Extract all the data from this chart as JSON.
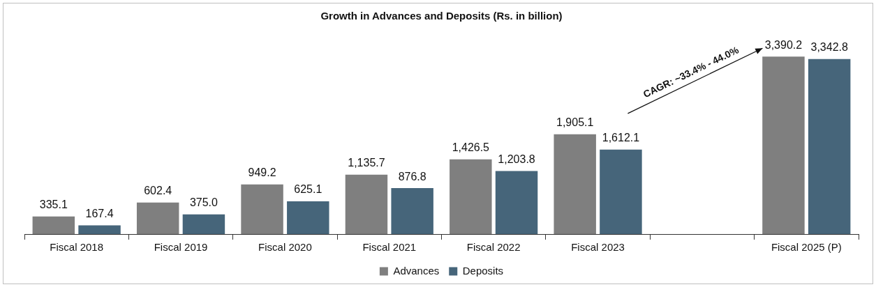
{
  "chart_data": {
    "type": "bar",
    "title": "Growth in Advances and Deposits (Rs. in billion)",
    "categories": [
      "Fiscal 2018",
      "Fiscal 2019",
      "Fiscal 2020",
      "Fiscal 2021",
      "Fiscal 2022",
      "Fiscal 2023",
      null,
      "Fiscal 2025 (P)"
    ],
    "series": [
      {
        "name": "Advances",
        "color": "#7f7f7f",
        "values": [
          335.1,
          602.4,
          949.2,
          1135.7,
          1426.5,
          1905.1,
          null,
          3390.2
        ],
        "value_labels": [
          "335.1",
          "602.4",
          "949.2",
          "1,135.7",
          "1,426.5",
          "1,905.1",
          null,
          "3,390.2"
        ]
      },
      {
        "name": "Deposits",
        "color": "#46657a",
        "values": [
          167.4,
          375.0,
          625.1,
          876.8,
          1203.8,
          1612.1,
          null,
          3342.8
        ],
        "value_labels": [
          "167.4",
          "375.0",
          "625.1",
          "876.8",
          "1,203.8",
          "1,612.1",
          null,
          "3,342.8"
        ]
      }
    ],
    "legend": "bottom",
    "grid": false,
    "annotations": [
      "CAGR: ~33.4% - 44.0%"
    ]
  }
}
